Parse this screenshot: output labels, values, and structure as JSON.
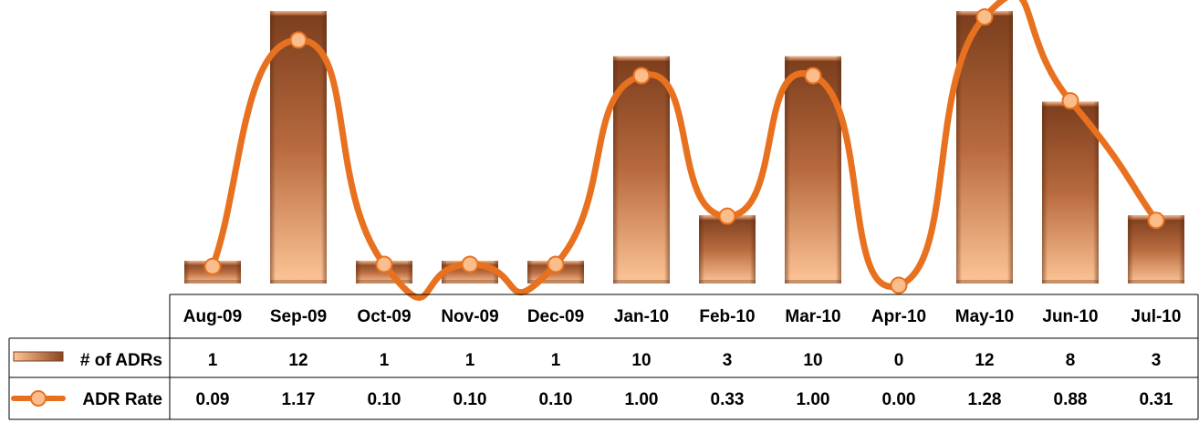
{
  "chart_data": {
    "type": "bar",
    "categories": [
      "Aug-09",
      "Sep-09",
      "Oct-09",
      "Nov-09",
      "Dec-09",
      "Jan-10",
      "Feb-10",
      "Mar-10",
      "Apr-10",
      "May-10",
      "Jun-10",
      "Jul-10"
    ],
    "series": [
      {
        "name": "# of ADRs",
        "type": "bar",
        "values": [
          1,
          12,
          1,
          1,
          1,
          10,
          3,
          10,
          0,
          12,
          8,
          3
        ],
        "labels": [
          "1",
          "12",
          "1",
          "1",
          "1",
          "10",
          "3",
          "10",
          "0",
          "12",
          "8",
          "3"
        ],
        "color": "#b0653a"
      },
      {
        "name": "ADR Rate",
        "type": "line",
        "smooth": true,
        "values": [
          0.09,
          1.17,
          0.1,
          0.1,
          0.1,
          1.0,
          0.33,
          1.0,
          0.0,
          1.28,
          0.88,
          0.31
        ],
        "labels": [
          "0.09",
          "1.17",
          "0.10",
          "0.10",
          "0.10",
          "1.00",
          "0.33",
          "1.00",
          "0.00",
          "1.28",
          "0.88",
          "0.31"
        ],
        "color": "#e8711f",
        "marker_color": "#fbbd8c"
      }
    ],
    "data_table": true,
    "legend": "data-table"
  }
}
